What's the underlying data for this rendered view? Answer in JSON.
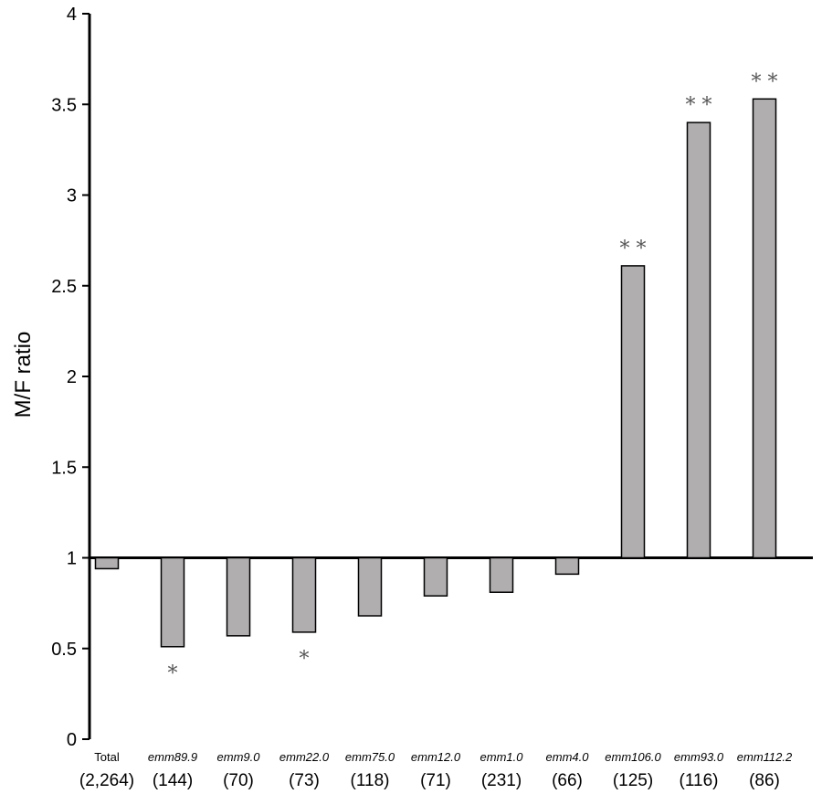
{
  "chart_data": {
    "type": "bar",
    "ylabel": "M/F ratio",
    "ylim": [
      0,
      4
    ],
    "yticks": [
      "0",
      "0.5",
      "1",
      "1.5",
      "2",
      "2.5",
      "3",
      "3.5",
      "4"
    ],
    "baseline": 1,
    "categories": [
      {
        "prefix": "",
        "suffix": "Total",
        "n": "(2,264)",
        "value": 0.94,
        "sig": ""
      },
      {
        "prefix": "emm",
        "suffix": "89.9",
        "n": "(144)",
        "value": 0.51,
        "sig": "*"
      },
      {
        "prefix": "emm",
        "suffix": "9.0",
        "n": "(70)",
        "value": 0.57,
        "sig": ""
      },
      {
        "prefix": "emm",
        "suffix": "22.0",
        "n": "(73)",
        "value": 0.59,
        "sig": "*"
      },
      {
        "prefix": "emm",
        "suffix": "75.0",
        "n": "(118)",
        "value": 0.68,
        "sig": ""
      },
      {
        "prefix": "emm",
        "suffix": "12.0",
        "n": "(71)",
        "value": 0.79,
        "sig": ""
      },
      {
        "prefix": "emm",
        "suffix": "1.0",
        "n": "(231)",
        "value": 0.81,
        "sig": ""
      },
      {
        "prefix": "emm",
        "suffix": "4.0",
        "n": "(66)",
        "value": 0.91,
        "sig": ""
      },
      {
        "prefix": "emm",
        "suffix": "106.0",
        "n": "(125)",
        "value": 2.61,
        "sig": "**"
      },
      {
        "prefix": "emm",
        "suffix": "93.0",
        "n": "(116)",
        "value": 3.4,
        "sig": "**"
      },
      {
        "prefix": "emm",
        "suffix": "112.2",
        "n": "(86)",
        "value": 3.53,
        "sig": "**"
      }
    ],
    "bar_color": "#b0aeaf",
    "bar_stroke": "#000000"
  }
}
